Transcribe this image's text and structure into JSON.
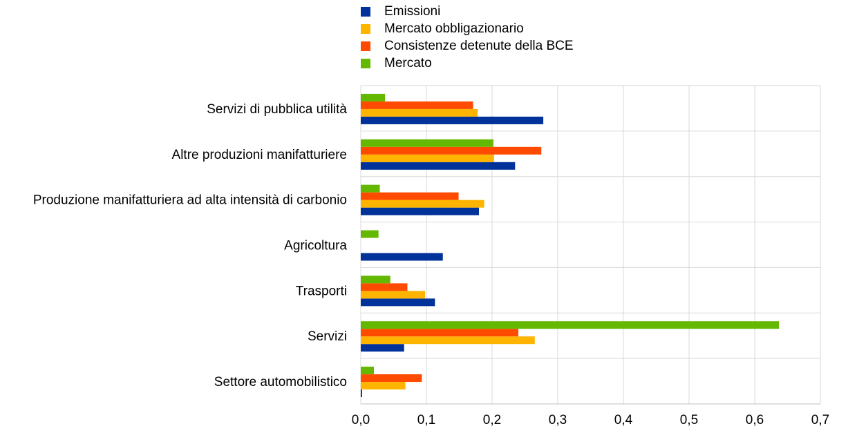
{
  "chart_data": {
    "type": "bar",
    "orientation": "horizontal",
    "categories": [
      "Servizi di pubblica utilità",
      "Altre produzioni manifatturiere ",
      "Produzione manifatturiera ad alta intensità di carbonio",
      "Agricoltura",
      "Trasporti",
      "Servizi",
      "Settore automobilistico"
    ],
    "series": [
      {
        "name": "Emissioni",
        "color": "#003299",
        "values": [
          0.278,
          0.235,
          0.18,
          0.125,
          0.113,
          0.066,
          0.002
        ]
      },
      {
        "name": "Mercato obbligazionario",
        "color": "#FFB400",
        "values": [
          0.178,
          0.203,
          0.188,
          0.0,
          0.098,
          0.265,
          0.068
        ]
      },
      {
        "name": "Consistenze detenute della BCE",
        "color": "#FF4B00",
        "values": [
          0.171,
          0.275,
          0.149,
          0.0,
          0.071,
          0.24,
          0.093
        ]
      },
      {
        "name": "Mercato",
        "color": "#65B800",
        "values": [
          0.037,
          0.202,
          0.029,
          0.027,
          0.045,
          0.637,
          0.02
        ]
      }
    ],
    "xlim": [
      0,
      0.7
    ],
    "xticks": [
      0,
      0.1,
      0.2,
      0.3,
      0.4,
      0.5,
      0.6,
      0.7
    ],
    "xtick_labels": [
      "0,0",
      "0,1",
      "0,2",
      "0,3",
      "0,4",
      "0,5",
      "0,6",
      "0,7"
    ],
    "grid": true,
    "legend_position": "top"
  }
}
